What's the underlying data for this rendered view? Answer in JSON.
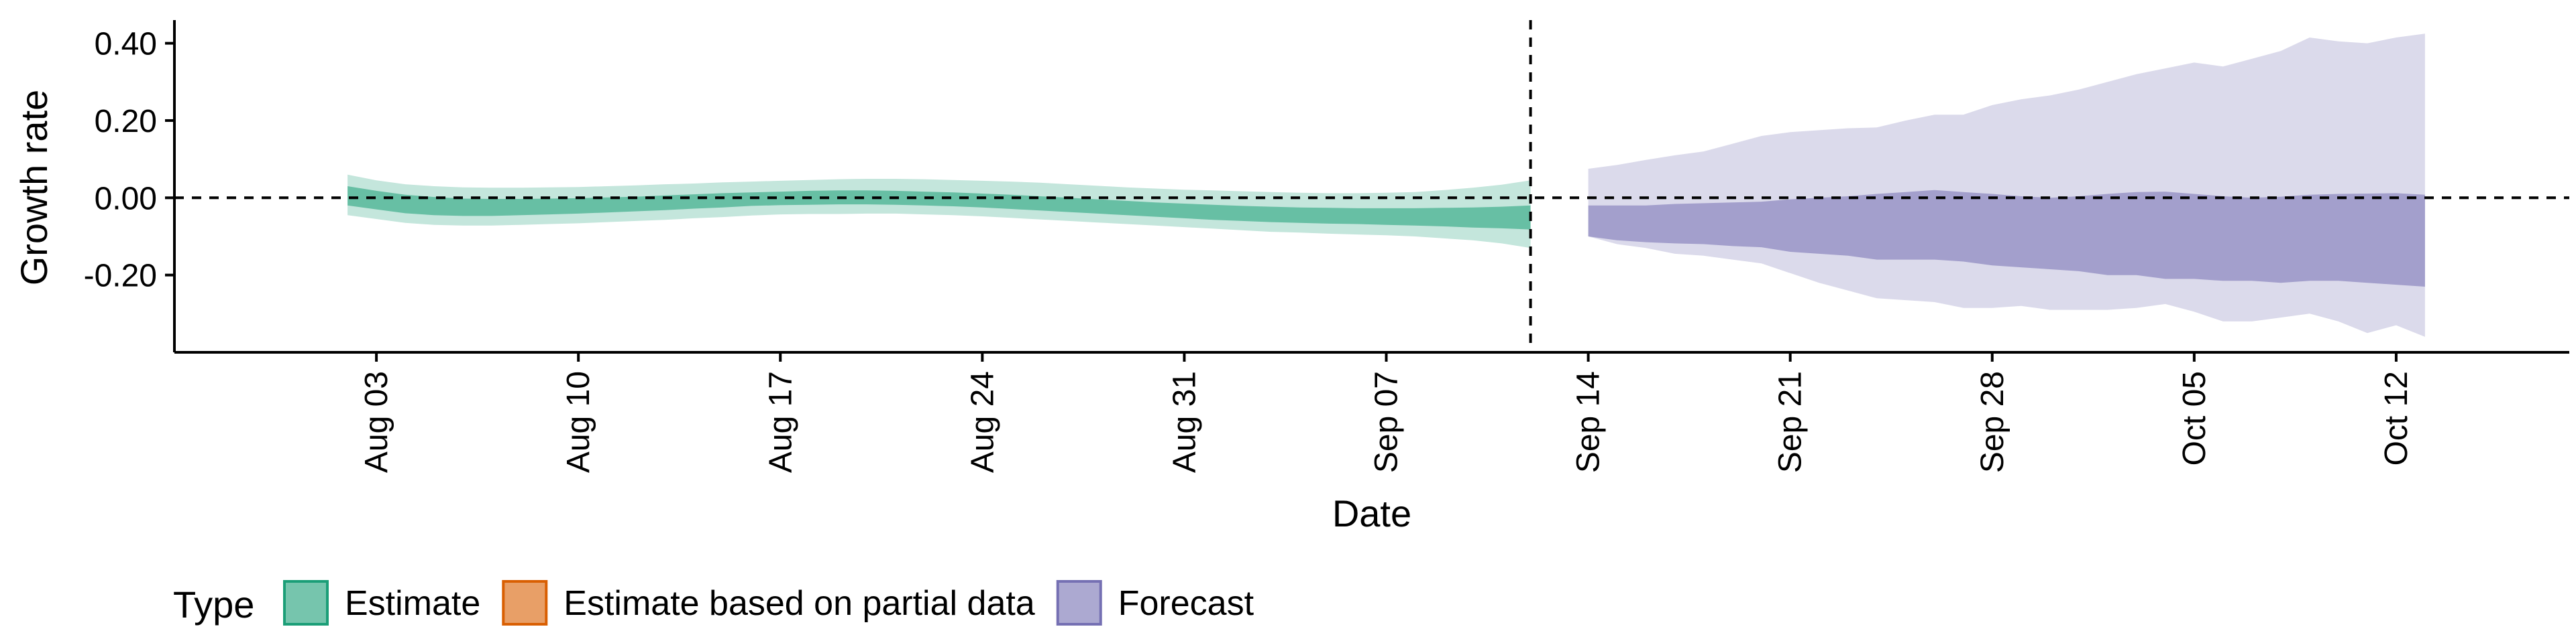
{
  "chart_data": {
    "type": "area",
    "xlabel": "Date",
    "ylabel": "Growth rate",
    "x_range": [
      "2020-07-27",
      "2020-10-18"
    ],
    "ylim": [
      -0.4,
      0.46
    ],
    "y_ticks": [
      {
        "value": 0.4,
        "label": "0.40"
      },
      {
        "value": 0.2,
        "label": "0.20"
      },
      {
        "value": 0.0,
        "label": "0.00"
      },
      {
        "value": -0.2,
        "label": "-0.20"
      }
    ],
    "x_ticks": [
      {
        "date": "2020-08-03",
        "label": "Aug 03"
      },
      {
        "date": "2020-08-10",
        "label": "Aug 10"
      },
      {
        "date": "2020-08-17",
        "label": "Aug 17"
      },
      {
        "date": "2020-08-24",
        "label": "Aug 24"
      },
      {
        "date": "2020-08-31",
        "label": "Aug 31"
      },
      {
        "date": "2020-09-07",
        "label": "Sep 07"
      },
      {
        "date": "2020-09-14",
        "label": "Sep 14"
      },
      {
        "date": "2020-09-21",
        "label": "Sep 21"
      },
      {
        "date": "2020-09-28",
        "label": "Sep 28"
      },
      {
        "date": "2020-10-05",
        "label": "Oct 05"
      },
      {
        "date": "2020-10-12",
        "label": "Oct 12"
      }
    ],
    "hline": 0,
    "vline_date": "2020-09-12",
    "grid": false,
    "legend": {
      "position": "bottom-left",
      "title": "Type",
      "entries": [
        {
          "label": "Estimate",
          "color": "#1b9e77"
        },
        {
          "label": "Estimate based on partial data",
          "color": "#d95f02"
        },
        {
          "label": "Forecast",
          "color": "#7570b3"
        }
      ]
    },
    "series": [
      {
        "name": "Estimate",
        "color": "#1b9e77",
        "dates": [
          "2020-08-02",
          "2020-08-03",
          "2020-08-04",
          "2020-08-05",
          "2020-08-06",
          "2020-08-07",
          "2020-08-08",
          "2020-08-09",
          "2020-08-10",
          "2020-08-11",
          "2020-08-12",
          "2020-08-13",
          "2020-08-14",
          "2020-08-15",
          "2020-08-16",
          "2020-08-17",
          "2020-08-18",
          "2020-08-19",
          "2020-08-20",
          "2020-08-21",
          "2020-08-22",
          "2020-08-23",
          "2020-08-24",
          "2020-08-25",
          "2020-08-26",
          "2020-08-27",
          "2020-08-28",
          "2020-08-29",
          "2020-08-30",
          "2020-08-31",
          "2020-09-01",
          "2020-09-02",
          "2020-09-03",
          "2020-09-04",
          "2020-09-05",
          "2020-09-06",
          "2020-09-07",
          "2020-09-08",
          "2020-09-09",
          "2020-09-10",
          "2020-09-11",
          "2020-09-12"
        ],
        "lower_90": [
          -0.045,
          -0.055,
          -0.065,
          -0.07,
          -0.072,
          -0.072,
          -0.07,
          -0.068,
          -0.066,
          -0.063,
          -0.06,
          -0.057,
          -0.053,
          -0.05,
          -0.046,
          -0.043,
          -0.042,
          -0.042,
          -0.041,
          -0.041,
          -0.043,
          -0.045,
          -0.048,
          -0.052,
          -0.056,
          -0.06,
          -0.064,
          -0.068,
          -0.072,
          -0.076,
          -0.08,
          -0.084,
          -0.088,
          -0.09,
          -0.093,
          -0.095,
          -0.097,
          -0.1,
          -0.105,
          -0.11,
          -0.118,
          -0.13
        ],
        "upper_90": [
          0.06,
          0.045,
          0.035,
          0.03,
          0.027,
          0.026,
          0.026,
          0.027,
          0.028,
          0.03,
          0.032,
          0.035,
          0.037,
          0.04,
          0.042,
          0.044,
          0.046,
          0.048,
          0.049,
          0.049,
          0.048,
          0.046,
          0.044,
          0.042,
          0.039,
          0.035,
          0.031,
          0.027,
          0.024,
          0.021,
          0.019,
          0.017,
          0.015,
          0.013,
          0.012,
          0.012,
          0.013,
          0.015,
          0.02,
          0.026,
          0.034,
          0.045
        ],
        "lower_50": [
          -0.02,
          -0.03,
          -0.04,
          -0.045,
          -0.047,
          -0.047,
          -0.045,
          -0.043,
          -0.041,
          -0.038,
          -0.035,
          -0.032,
          -0.028,
          -0.025,
          -0.021,
          -0.019,
          -0.018,
          -0.017,
          -0.017,
          -0.018,
          -0.02,
          -0.022,
          -0.025,
          -0.029,
          -0.033,
          -0.037,
          -0.041,
          -0.045,
          -0.049,
          -0.053,
          -0.057,
          -0.06,
          -0.063,
          -0.065,
          -0.067,
          -0.068,
          -0.07,
          -0.072,
          -0.074,
          -0.077,
          -0.079,
          -0.082
        ],
        "upper_50": [
          0.03,
          0.018,
          0.008,
          0.002,
          -0.002,
          -0.003,
          -0.003,
          -0.002,
          -0.001,
          0.001,
          0.003,
          0.006,
          0.009,
          0.012,
          0.014,
          0.016,
          0.018,
          0.019,
          0.019,
          0.018,
          0.016,
          0.014,
          0.011,
          0.008,
          0.004,
          0.0,
          -0.004,
          -0.008,
          -0.012,
          -0.015,
          -0.018,
          -0.021,
          -0.023,
          -0.025,
          -0.026,
          -0.027,
          -0.027,
          -0.027,
          -0.026,
          -0.025,
          -0.023,
          -0.02
        ]
      },
      {
        "name": "Forecast",
        "color": "#7570b3",
        "dates": [
          "2020-09-14",
          "2020-09-15",
          "2020-09-16",
          "2020-09-17",
          "2020-09-18",
          "2020-09-19",
          "2020-09-20",
          "2020-09-21",
          "2020-09-22",
          "2020-09-23",
          "2020-09-24",
          "2020-09-25",
          "2020-09-26",
          "2020-09-27",
          "2020-09-28",
          "2020-09-29",
          "2020-09-30",
          "2020-10-01",
          "2020-10-02",
          "2020-10-03",
          "2020-10-04",
          "2020-10-05",
          "2020-10-06",
          "2020-10-07",
          "2020-10-08",
          "2020-10-09",
          "2020-10-10",
          "2020-10-11",
          "2020-10-12",
          "2020-10-13"
        ],
        "lower_90": [
          -0.1,
          -0.12,
          -0.13,
          -0.145,
          -0.15,
          -0.16,
          -0.17,
          -0.195,
          -0.22,
          -0.24,
          -0.26,
          -0.265,
          -0.27,
          -0.285,
          -0.285,
          -0.28,
          -0.29,
          -0.29,
          -0.29,
          -0.285,
          -0.275,
          -0.295,
          -0.32,
          -0.32,
          -0.31,
          -0.3,
          -0.32,
          -0.35,
          -0.33,
          -0.36
        ],
        "upper_90": [
          0.075,
          0.085,
          0.098,
          0.11,
          0.12,
          0.14,
          0.16,
          0.17,
          0.175,
          0.18,
          0.182,
          0.2,
          0.215,
          0.215,
          0.24,
          0.255,
          0.265,
          0.28,
          0.3,
          0.32,
          0.335,
          0.35,
          0.34,
          0.36,
          0.38,
          0.415,
          0.405,
          0.4,
          0.415,
          0.425
        ],
        "lower_50": [
          -0.02,
          -0.02,
          -0.02,
          -0.016,
          -0.014,
          -0.012,
          -0.01,
          -0.004,
          0.0,
          0.004,
          0.01,
          0.015,
          0.02,
          0.015,
          0.01,
          0.004,
          0.0,
          0.004,
          0.01,
          0.015,
          0.016,
          0.01,
          0.004,
          0.0,
          0.003,
          0.008,
          0.01,
          0.011,
          0.012,
          0.008
        ],
        "upper_50": [
          -0.1,
          -0.11,
          -0.115,
          -0.118,
          -0.12,
          -0.125,
          -0.128,
          -0.14,
          -0.145,
          -0.15,
          -0.16,
          -0.16,
          -0.16,
          -0.165,
          -0.175,
          -0.18,
          -0.185,
          -0.19,
          -0.2,
          -0.2,
          -0.21,
          -0.21,
          -0.215,
          -0.215,
          -0.22,
          -0.215,
          -0.215,
          -0.22,
          -0.225,
          -0.23
        ]
      }
    ]
  }
}
